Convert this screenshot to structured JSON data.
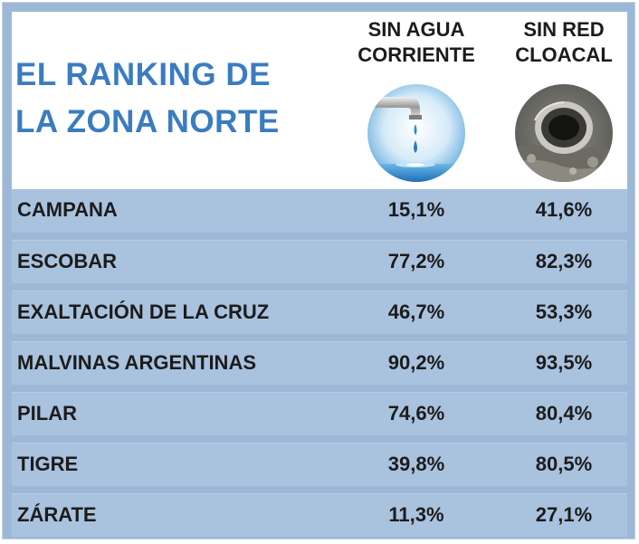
{
  "header": {
    "title_lines": [
      "EL RANKING DE",
      "LA ZONA NORTE"
    ],
    "water_lines": [
      "SIN AGUA",
      "CORRIENTE"
    ],
    "sewer_lines": [
      "SIN RED",
      "CLOACAL"
    ],
    "water_icon": "faucet-drop-icon",
    "sewer_icon": "sewer-pipe-icon"
  },
  "colors": {
    "title": "#3a7cc0",
    "row_background": "#a9c2de",
    "frame": "#9db8d6",
    "text": "#1c1c1c"
  },
  "chart_data": {
    "type": "table",
    "title": "EL RANKING DE LA ZONA NORTE",
    "columns": [
      "SIN AGUA CORRIENTE",
      "SIN RED CLOACAL"
    ],
    "rows": [
      {
        "name": "CAMPANA",
        "values": [
          "15,1%",
          "41,6%"
        ]
      },
      {
        "name": "ESCOBAR",
        "values": [
          "77,2%",
          "82,3%"
        ]
      },
      {
        "name": "EXALTACIÓN DE LA CRUZ",
        "values": [
          "46,7%",
          "53,3%"
        ]
      },
      {
        "name": "MALVINAS ARGENTINAS",
        "values": [
          "90,2%",
          "93,5%"
        ]
      },
      {
        "name": "PILAR",
        "values": [
          "74,6%",
          "80,4%"
        ]
      },
      {
        "name": "TIGRE",
        "values": [
          "39,8%",
          "80,5%"
        ]
      },
      {
        "name": "ZÁRATE",
        "values": [
          "11,3%",
          "27,1%"
        ]
      }
    ]
  }
}
